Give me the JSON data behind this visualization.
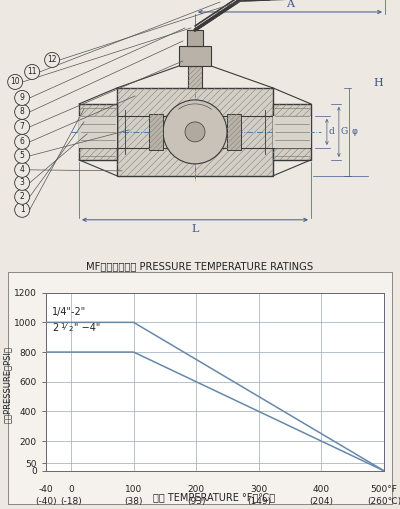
{
  "fig_width": 4.0,
  "fig_height": 5.09,
  "dpi": 100,
  "bg_color": "#ede9e2",
  "line_color": "#3a3a3a",
  "hatch_color": "#888878",
  "body_fill": "#d4cfc6",
  "chart_bg": "#ffffff",
  "chart_border": "#555555",
  "title_chart": "MF压力温度定额 PRESSURE TEMPERATURE RATINGS",
  "xticks_f": [
    -40,
    0,
    100,
    200,
    300,
    400,
    500
  ],
  "xticks_c_labels": [
    "(-40)",
    "(-18)",
    "(38)",
    "(93)",
    "(149)",
    "(204)",
    "(260℃)"
  ],
  "xticks_f_labels": [
    "-40",
    "0",
    "100",
    "200",
    "300",
    "400",
    "500°F"
  ],
  "yticks": [
    0,
    50,
    200,
    400,
    600,
    800,
    1000,
    1200
  ],
  "line1_label": "1/4\"-2\"",
  "line2_label_a": "2",
  "line2_label_b": "1",
  "line2_label_c": "/",
  "line2_label_d": "2",
  "line2_label_e": "\" −4\"",
  "line1_x": [
    -40,
    100,
    500
  ],
  "line1_y": [
    1000,
    1000,
    0
  ],
  "line2_x": [
    -40,
    100,
    500
  ],
  "line2_y": [
    800,
    800,
    0
  ],
  "line_color_plot": "#6688aa",
  "grid_color": "#99aabb",
  "dim_color": "#445588",
  "label_color": "#333333",
  "ylabel_text": "压力PRESSURE（PSI）",
  "xlabel_text": "温度 TEMPERATURE °F（℃）"
}
